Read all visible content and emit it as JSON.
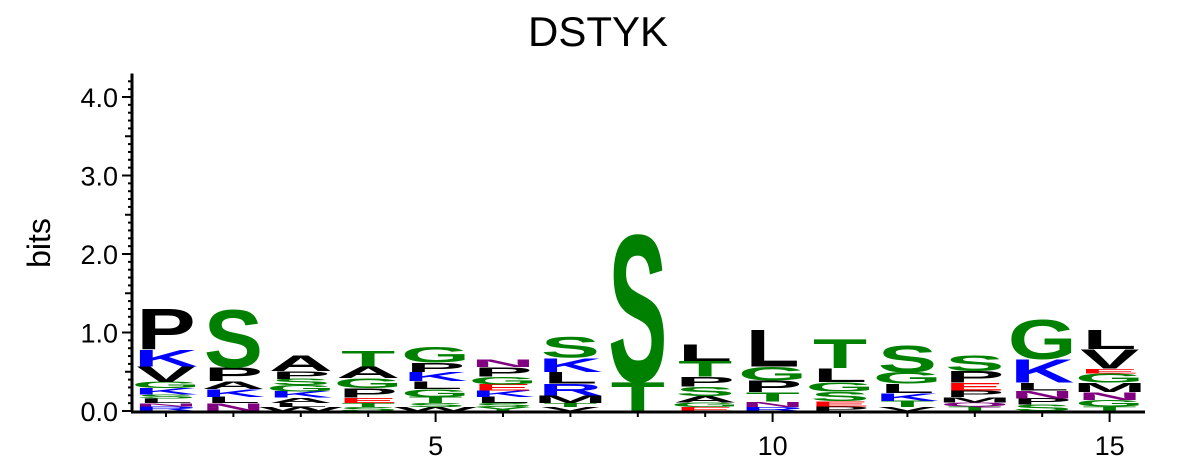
{
  "chart_data": {
    "type": "sequence-logo",
    "title": "DSTYK",
    "ylabel": "bits",
    "xlabel": "",
    "ylim": [
      0,
      4.3
    ],
    "y_ticks": [
      "0.0",
      "1.0",
      "2.0",
      "3.0",
      "4.0"
    ],
    "y_tick_values": [
      0,
      1,
      2,
      3,
      4
    ],
    "x_ticks": [
      "5",
      "10",
      "15"
    ],
    "x_tick_values": [
      5,
      10,
      15
    ],
    "colors": {
      "P": "#000000",
      "L": "#000000",
      "V": "#000000",
      "A": "#000000",
      "F": "#000000",
      "M": "#000000",
      "W": "#000000",
      "I": "#000000",
      "S": "#008000",
      "T": "#008000",
      "G": "#008000",
      "Y": "#008000",
      "C": "#008000",
      "K": "#0000ff",
      "R": "#0000ff",
      "H": "#0000ff",
      "N": "#800080",
      "Q": "#800080",
      "E": "#ff0000",
      "D": "#ff0000"
    },
    "positions": [
      {
        "pos": 1,
        "stack": [
          [
            "R",
            0.06
          ],
          [
            "N",
            0.04
          ],
          [
            "L",
            0.06
          ],
          [
            "S",
            0.05
          ],
          [
            "K",
            0.08
          ],
          [
            "G",
            0.08
          ],
          [
            "V",
            0.2
          ],
          [
            "K",
            0.22
          ],
          [
            "P",
            0.53
          ]
        ]
      },
      {
        "pos": 2,
        "stack": [
          [
            "N",
            0.1
          ],
          [
            "L",
            0.08
          ],
          [
            "K",
            0.1
          ],
          [
            "A",
            0.1
          ],
          [
            "P",
            0.18
          ],
          [
            "S",
            0.75
          ]
        ]
      },
      {
        "pos": 3,
        "stack": [
          [
            "W",
            0.05
          ],
          [
            "L",
            0.05
          ],
          [
            "A",
            0.07
          ],
          [
            "K",
            0.08
          ],
          [
            "G",
            0.08
          ],
          [
            "S",
            0.08
          ],
          [
            "P",
            0.1
          ],
          [
            "A",
            0.2
          ]
        ]
      },
      {
        "pos": 4,
        "stack": [
          [
            "S",
            0.05
          ],
          [
            "T",
            0.05
          ],
          [
            "E",
            0.07
          ],
          [
            "P",
            0.12
          ],
          [
            "G",
            0.13
          ],
          [
            "A",
            0.15
          ],
          [
            "T",
            0.2
          ]
        ]
      },
      {
        "pos": 5,
        "stack": [
          [
            "W",
            0.05
          ],
          [
            "S",
            0.05
          ],
          [
            "T",
            0.08
          ],
          [
            "G",
            0.1
          ],
          [
            "L",
            0.1
          ],
          [
            "K",
            0.12
          ],
          [
            "P",
            0.12
          ],
          [
            "G",
            0.2
          ]
        ]
      },
      {
        "pos": 6,
        "stack": [
          [
            "Y",
            0.05
          ],
          [
            "S",
            0.05
          ],
          [
            "L",
            0.08
          ],
          [
            "K",
            0.08
          ],
          [
            "E",
            0.08
          ],
          [
            "G",
            0.1
          ],
          [
            "P",
            0.12
          ],
          [
            "N",
            0.1
          ]
        ]
      },
      {
        "pos": 7,
        "stack": [
          [
            "V",
            0.05
          ],
          [
            "T",
            0.05
          ],
          [
            "M",
            0.1
          ],
          [
            "R",
            0.15
          ],
          [
            "L",
            0.15
          ],
          [
            "K",
            0.18
          ],
          [
            "S",
            0.27
          ]
        ]
      },
      {
        "pos": 8,
        "stack": [
          [
            "T",
            0.38
          ],
          [
            "S",
            1.92
          ]
        ]
      },
      {
        "pos": 9,
        "stack": [
          [
            "E",
            0.05
          ],
          [
            "G",
            0.06
          ],
          [
            "A",
            0.08
          ],
          [
            "S",
            0.12
          ],
          [
            "P",
            0.13
          ],
          [
            "T",
            0.2
          ],
          [
            "L",
            0.22
          ]
        ]
      },
      {
        "pos": 10,
        "stack": [
          [
            "R",
            0.05
          ],
          [
            "N",
            0.07
          ],
          [
            "T",
            0.12
          ],
          [
            "P",
            0.15
          ],
          [
            "G",
            0.18
          ],
          [
            "L",
            0.48
          ]
        ]
      },
      {
        "pos": 11,
        "stack": [
          [
            "P",
            0.06
          ],
          [
            "E",
            0.07
          ],
          [
            "S",
            0.12
          ],
          [
            "G",
            0.12
          ],
          [
            "L",
            0.18
          ],
          [
            "T",
            0.38
          ]
        ]
      },
      {
        "pos": 12,
        "stack": [
          [
            "V",
            0.05
          ],
          [
            "T",
            0.08
          ],
          [
            "K",
            0.1
          ],
          [
            "L",
            0.12
          ],
          [
            "G",
            0.15
          ],
          [
            "S",
            0.35
          ]
        ]
      },
      {
        "pos": 13,
        "stack": [
          [
            "T",
            0.06
          ],
          [
            "Q",
            0.05
          ],
          [
            "M",
            0.07
          ],
          [
            "P",
            0.08
          ],
          [
            "E",
            0.1
          ],
          [
            "P",
            0.15
          ],
          [
            "S",
            0.2
          ]
        ]
      },
      {
        "pos": 14,
        "stack": [
          [
            "S",
            0.08
          ],
          [
            "P",
            0.08
          ],
          [
            "N",
            0.1
          ],
          [
            "L",
            0.1
          ],
          [
            "K",
            0.3
          ],
          [
            "G",
            0.52
          ]
        ]
      },
      {
        "pos": 15,
        "stack": [
          [
            "T",
            0.06
          ],
          [
            "G",
            0.08
          ],
          [
            "N",
            0.1
          ],
          [
            "M",
            0.12
          ],
          [
            "G",
            0.12
          ],
          [
            "E",
            0.06
          ],
          [
            "V",
            0.25
          ],
          [
            "L",
            0.25
          ]
        ]
      }
    ]
  }
}
